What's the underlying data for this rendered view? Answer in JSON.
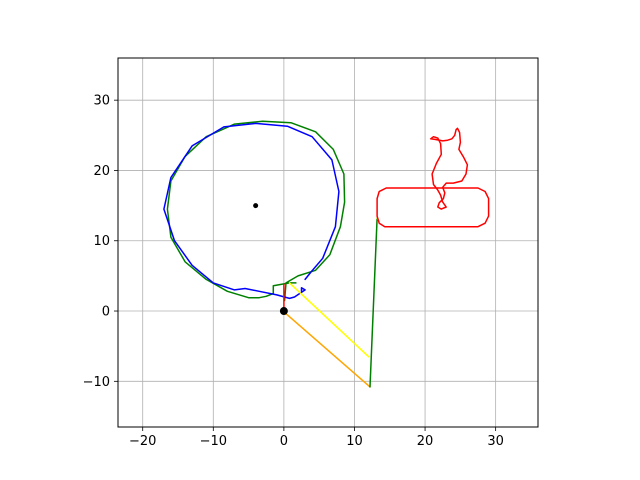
{
  "chart_data": {
    "type": "line",
    "title": "",
    "xlabel": "",
    "ylabel": "",
    "xlim": [
      -23.5,
      36.0
    ],
    "ylim": [
      -16.5,
      36.0
    ],
    "grid": true,
    "aspect": "equal",
    "x_ticks": [
      -20,
      -10,
      0,
      10,
      20,
      30
    ],
    "y_ticks": [
      -10,
      0,
      10,
      20,
      30
    ],
    "x_tick_labels": [
      "−20",
      "−10",
      "0",
      "10",
      "20",
      "30"
    ],
    "y_tick_labels": [
      "−10",
      "0",
      "10",
      "20",
      "30"
    ],
    "colors": {
      "green": "#008000",
      "blue": "#0000ff",
      "red": "#ff0000",
      "yellow": "#ffff00",
      "orange": "#ffa500",
      "black": "#000000",
      "grid": "#b0b0b0"
    },
    "series": [
      {
        "color": "green",
        "points": [
          [
            1.7,
            4.0
          ],
          [
            0.8,
            4.0
          ],
          [
            -1.5,
            3.6
          ],
          [
            -1.5,
            2.5
          ],
          [
            -2.5,
            2.1
          ],
          [
            -3.5,
            1.9
          ],
          [
            -5.0,
            1.9
          ],
          [
            -8.0,
            2.8
          ],
          [
            -11.0,
            4.5
          ],
          [
            -14.0,
            7.0
          ],
          [
            -16.0,
            10.5
          ],
          [
            -16.5,
            14.5
          ],
          [
            -16.0,
            18.5
          ],
          [
            -14.0,
            22.0
          ],
          [
            -11.0,
            24.8
          ],
          [
            -7.0,
            26.6
          ],
          [
            -3.0,
            27.0
          ],
          [
            1.0,
            26.8
          ],
          [
            4.5,
            25.5
          ],
          [
            7.0,
            23.0
          ],
          [
            8.5,
            19.5
          ],
          [
            8.6,
            15.5
          ],
          [
            8.0,
            12.0
          ],
          [
            6.5,
            8.0
          ],
          [
            4.5,
            5.8
          ],
          [
            2.0,
            5.0
          ],
          [
            0.3,
            4.0
          ],
          [
            0.1,
            1.5
          ]
        ]
      },
      {
        "color": "blue",
        "points": [
          [
            2.5,
            2.8
          ],
          [
            2.5,
            3.3
          ],
          [
            3.0,
            3.0
          ],
          [
            1.5,
            2.0
          ],
          [
            0.8,
            1.8
          ],
          [
            -1.0,
            2.3
          ],
          [
            -3.5,
            2.8
          ],
          [
            -5.5,
            3.2
          ],
          [
            -7.0,
            3.0
          ],
          [
            -10.0,
            4.0
          ],
          [
            -13.0,
            6.5
          ],
          [
            -15.5,
            10.0
          ],
          [
            -17.0,
            14.5
          ],
          [
            -16.0,
            19.0
          ],
          [
            -13.0,
            23.5
          ],
          [
            -8.5,
            26.2
          ],
          [
            -4.0,
            26.7
          ],
          [
            0.5,
            26.3
          ],
          [
            4.0,
            24.8
          ],
          [
            6.8,
            21.5
          ],
          [
            7.8,
            17.0
          ],
          [
            7.3,
            12.0
          ],
          [
            5.5,
            7.5
          ],
          [
            3.8,
            5.5
          ],
          [
            3.0,
            4.5
          ]
        ]
      },
      {
        "color": "red",
        "points": [
          [
            0.0,
            0.0
          ],
          [
            0.0,
            3.8
          ]
        ]
      },
      {
        "color": "yellow",
        "points": [
          [
            0.8,
            4.0
          ],
          [
            12.0,
            -6.5
          ]
        ]
      },
      {
        "color": "orange",
        "points": [
          [
            0.2,
            -0.3
          ],
          [
            12.2,
            -10.8
          ]
        ]
      },
      {
        "color": "green",
        "points": [
          [
            12.2,
            -10.8
          ],
          [
            13.2,
            13.2
          ]
        ]
      },
      {
        "color": "yellow",
        "points": [
          [
            13.2,
            13.2
          ],
          [
            13.5,
            12.8
          ]
        ]
      },
      {
        "color": "red",
        "points": [
          [
            14.3,
            12.0
          ],
          [
            27.5,
            12.0
          ],
          [
            28.5,
            12.5
          ],
          [
            29.0,
            13.5
          ],
          [
            29.0,
            16.0
          ],
          [
            28.5,
            17.0
          ],
          [
            27.5,
            17.5
          ],
          [
            14.5,
            17.5
          ],
          [
            13.5,
            17.0
          ],
          [
            13.2,
            16.0
          ],
          [
            13.2,
            13.5
          ],
          [
            13.5,
            12.5
          ],
          [
            14.3,
            12.0
          ]
        ]
      },
      {
        "color": "red",
        "points": [
          [
            23.0,
            14.8
          ],
          [
            22.5,
            15.5
          ],
          [
            22.2,
            16.5
          ],
          [
            21.8,
            17.2
          ],
          [
            21.2,
            18.0
          ],
          [
            21.0,
            19.5
          ],
          [
            21.6,
            21.0
          ],
          [
            22.3,
            22.3
          ],
          [
            22.2,
            23.8
          ],
          [
            21.8,
            24.6
          ],
          [
            21.2,
            24.8
          ],
          [
            20.8,
            24.5
          ],
          [
            21.5,
            24.4
          ],
          [
            22.5,
            24.2
          ],
          [
            23.2,
            24.3
          ],
          [
            23.8,
            24.5
          ],
          [
            24.2,
            25.0
          ],
          [
            24.4,
            25.8
          ],
          [
            24.6,
            26.0
          ],
          [
            24.9,
            25.4
          ],
          [
            25.0,
            24.0
          ],
          [
            24.8,
            23.0
          ],
          [
            25.5,
            21.8
          ],
          [
            26.0,
            20.8
          ],
          [
            25.8,
            19.5
          ],
          [
            25.2,
            18.5
          ],
          [
            24.0,
            18.2
          ],
          [
            23.0,
            18.2
          ],
          [
            22.5,
            17.6
          ],
          [
            22.8,
            16.8
          ],
          [
            22.6,
            16.0
          ],
          [
            22.0,
            15.4
          ],
          [
            21.8,
            14.8
          ],
          [
            22.3,
            14.5
          ],
          [
            23.0,
            14.8
          ]
        ]
      }
    ],
    "points": [
      {
        "x": -4.0,
        "y": 15.0,
        "color": "black",
        "size": "small"
      },
      {
        "x": 0.0,
        "y": 0.0,
        "color": "black",
        "size": "large"
      }
    ]
  }
}
